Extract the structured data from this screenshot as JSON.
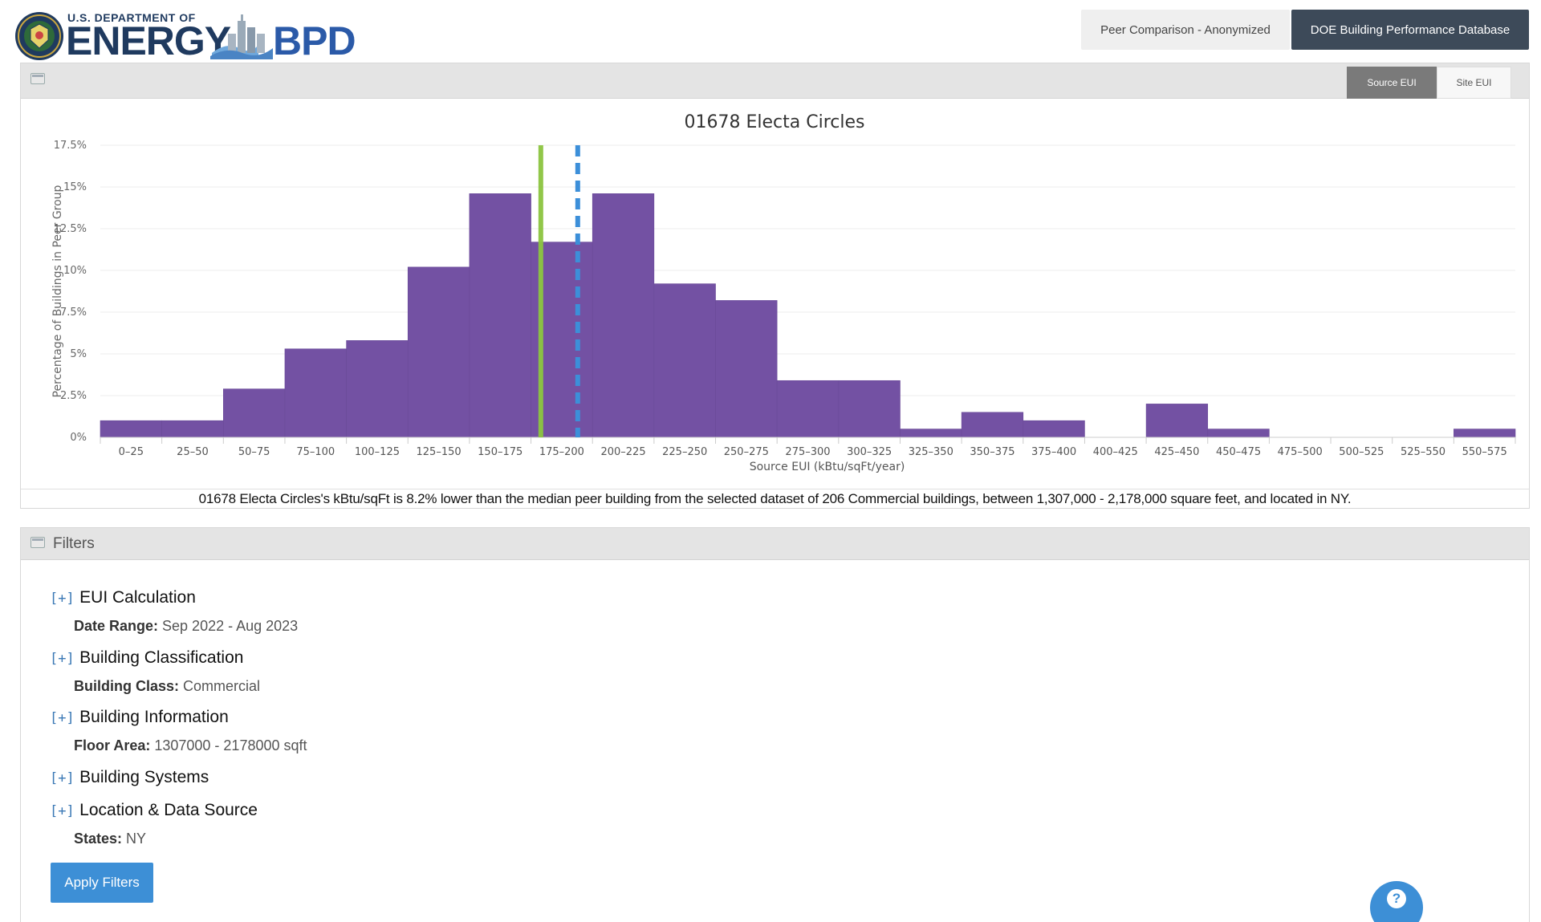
{
  "header": {
    "logo_doe_text": "U.S. DEPARTMENT OF",
    "logo_energy_text": "ENERGY",
    "logo_bpd_text": "BPD",
    "peer_button": "Peer Comparison - Anonymized",
    "doe_button": "DOE Building Performance Database"
  },
  "chart_panel": {
    "source_eui_label": "Source EUI",
    "site_eui_label": "Site EUI",
    "summary": "01678 Electa Circles's kBtu/sqFt is 8.2% lower than the median peer building from the selected dataset of 206 Commercial buildings, between 1,307,000 - 2,178,000 square feet, and located in NY."
  },
  "colors": {
    "bar": "#7351a3",
    "building_line": "#8cc540",
    "median_line": "#3c8fd9",
    "primary_button": "#3d8fd6",
    "dark_button": "#3d4a59"
  },
  "chart_data": {
    "type": "bar",
    "title": "01678 Electa Circles",
    "xlabel": "Source EUI (kBtu/sqFt/year)",
    "ylabel": "Percentage of Buildings in Peer Group",
    "categories": [
      "0–25",
      "25–50",
      "50–75",
      "75–100",
      "100–125",
      "125–150",
      "150–175",
      "175–200",
      "200–225",
      "225–250",
      "250–275",
      "275–300",
      "300–325",
      "325–350",
      "350–375",
      "375–400",
      "400–425",
      "425–450",
      "450–475",
      "475–500",
      "500–525",
      "525–550",
      "550–575"
    ],
    "values": [
      1.0,
      1.0,
      2.9,
      5.3,
      5.8,
      10.2,
      14.6,
      11.7,
      14.6,
      9.2,
      8.2,
      3.4,
      3.4,
      0.5,
      1.5,
      1.0,
      0.0,
      2.0,
      0.5,
      0.0,
      0.0,
      0.0,
      0.5
    ],
    "ylim": [
      0,
      17.5
    ],
    "yticks": [
      "0%",
      "2.5%",
      "5%",
      "7.5%",
      "10%",
      "12.5%",
      "15%",
      "17.5%"
    ],
    "ytick_values": [
      0,
      2.5,
      5,
      7.5,
      10,
      12.5,
      15,
      17.5
    ],
    "reference_lines": [
      {
        "x": 179,
        "style": "solid",
        "color": "#8cc540"
      },
      {
        "x": 194,
        "style": "dashed",
        "color": "#3c8fd9"
      }
    ],
    "grid": true,
    "legend": "none"
  },
  "filters": {
    "title": "Filters",
    "plus": "[+]",
    "sections": [
      {
        "title": "EUI Calculation",
        "detail_label": "Date Range:",
        "detail_value": " Sep 2022 - Aug 2023"
      },
      {
        "title": "Building Classification",
        "detail_label": "Building Class:",
        "detail_value": " Commercial"
      },
      {
        "title": "Building Information",
        "detail_label": "Floor Area:",
        "detail_value": " 1307000 - 2178000 sqft"
      },
      {
        "title": "Building Systems",
        "detail_label": "",
        "detail_value": ""
      },
      {
        "title": "Location & Data Source",
        "detail_label": "States:",
        "detail_value": " NY"
      }
    ],
    "apply_label": "Apply Filters"
  },
  "help": {
    "icon_glyph": "?"
  }
}
